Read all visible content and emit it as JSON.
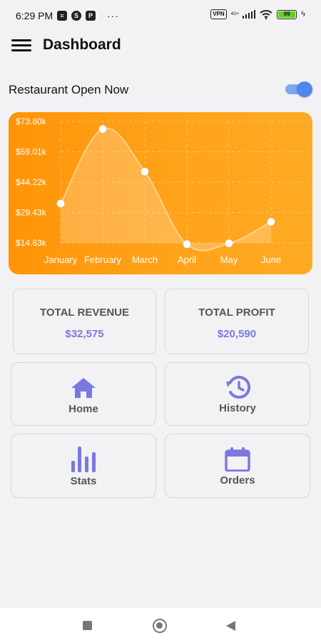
{
  "status_bar": {
    "time": "6:29 PM",
    "vpn": "VPN",
    "network": "4G+",
    "battery": "99"
  },
  "header": {
    "title": "Dashboard"
  },
  "restaurant_toggle": {
    "label": "Restaurant Open Now",
    "on": true
  },
  "chart_data": {
    "type": "area",
    "categories": [
      "January",
      "February",
      "March",
      "April",
      "May",
      "June"
    ],
    "values": [
      33800,
      70100,
      49400,
      14000,
      14400,
      24900
    ],
    "y_ticks": [
      "$73.80k",
      "$59.01k",
      "$44.22k",
      "$29.43k",
      "$14.63k"
    ],
    "ylim": [
      14630,
      73800
    ],
    "grid": true,
    "colors": {
      "background": "#ff9d12",
      "line": "#ffffff"
    }
  },
  "stats": {
    "revenue": {
      "title": "TOTAL REVENUE",
      "value": "$32,575"
    },
    "profit": {
      "title": "TOTAL PROFIT",
      "value": "$20,590"
    }
  },
  "menu": {
    "home": "Home",
    "history": "History",
    "stats": "Stats",
    "orders": "Orders"
  },
  "colors": {
    "accent": "#7a78e0",
    "toggle": "#4e86ee"
  }
}
